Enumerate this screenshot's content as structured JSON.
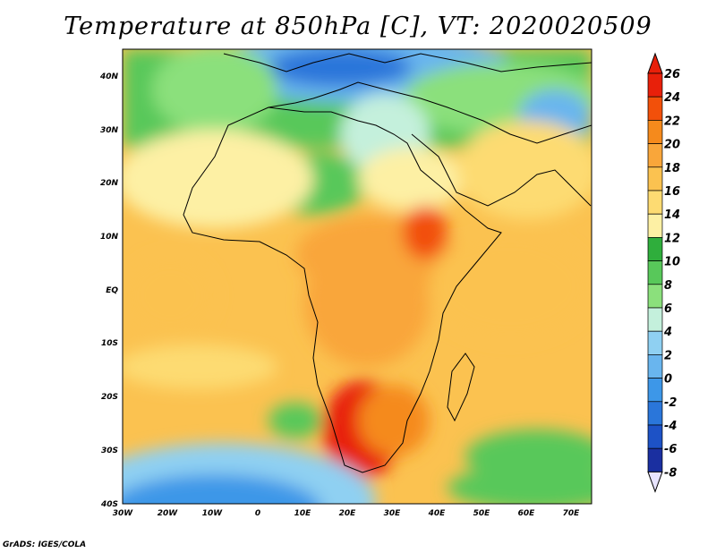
{
  "title": "Temperature at 850hPa [C], VT: 2020020509",
  "credit": "GrADS: IGES/COLA",
  "lat_labels": [
    "40N",
    "30N",
    "20N",
    "10N",
    "EQ",
    "10S",
    "20S",
    "30S",
    "40S"
  ],
  "lon_labels": [
    "30W",
    "20W",
    "10W",
    "0",
    "10E",
    "20E",
    "30E",
    "40E",
    "50E",
    "60E",
    "70E"
  ],
  "colorbar": {
    "labels": [
      "26",
      "24",
      "22",
      "20",
      "18",
      "16",
      "14",
      "12",
      "10",
      "8",
      "6",
      "4",
      "2",
      "0",
      "-2",
      "-4",
      "-6",
      "-8"
    ],
    "colors": [
      "#e8200a",
      "#f2500a",
      "#f58a1c",
      "#f9a63a",
      "#fbc250",
      "#fddb72",
      "#fdf0a4",
      "#2fae3c",
      "#58c85a",
      "#8be07c",
      "#c4f0dc",
      "#8fd0f2",
      "#69b5ee",
      "#3d97e8",
      "#2a76da",
      "#1d52c6",
      "#1a2fa0",
      "#142080"
    ]
  }
}
